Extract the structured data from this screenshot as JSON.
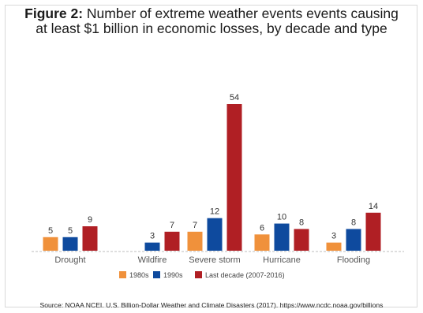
{
  "title": {
    "prefix": "Figure 2:",
    "line1": "Number of extreme weather events events causing",
    "line2": "at least $1 billion in economic losses, by decade and type"
  },
  "source": "Source: NOAA NCEI. U.S. Billion-Dollar Weather and Climate Disasters (2017). https://www.ncdc.noaa.gov/billions",
  "chart_data": {
    "type": "bar",
    "categories": [
      "Drought",
      "Wildfire",
      "Severe storm",
      "Hurricane",
      "Flooding"
    ],
    "series": [
      {
        "name": "1980s",
        "color": "#f0913b",
        "values": [
          5,
          0,
          7,
          6,
          3
        ]
      },
      {
        "name": "1990s",
        "color": "#0e4a9e",
        "values": [
          5,
          3,
          12,
          10,
          8
        ]
      },
      {
        "name": "Last decade (2007-2016)",
        "color": "#b01f24",
        "values": [
          9,
          7,
          54,
          8,
          14
        ]
      }
    ],
    "data_labels": [
      [
        "5",
        "5",
        "9"
      ],
      [
        "",
        "3",
        "7"
      ],
      [
        "7",
        "12",
        "54"
      ],
      [
        "6",
        "10",
        "8"
      ],
      [
        "3",
        "8",
        "14"
      ]
    ],
    "ylim": [
      0,
      60
    ],
    "grid": false,
    "legend": "bottom-center"
  }
}
